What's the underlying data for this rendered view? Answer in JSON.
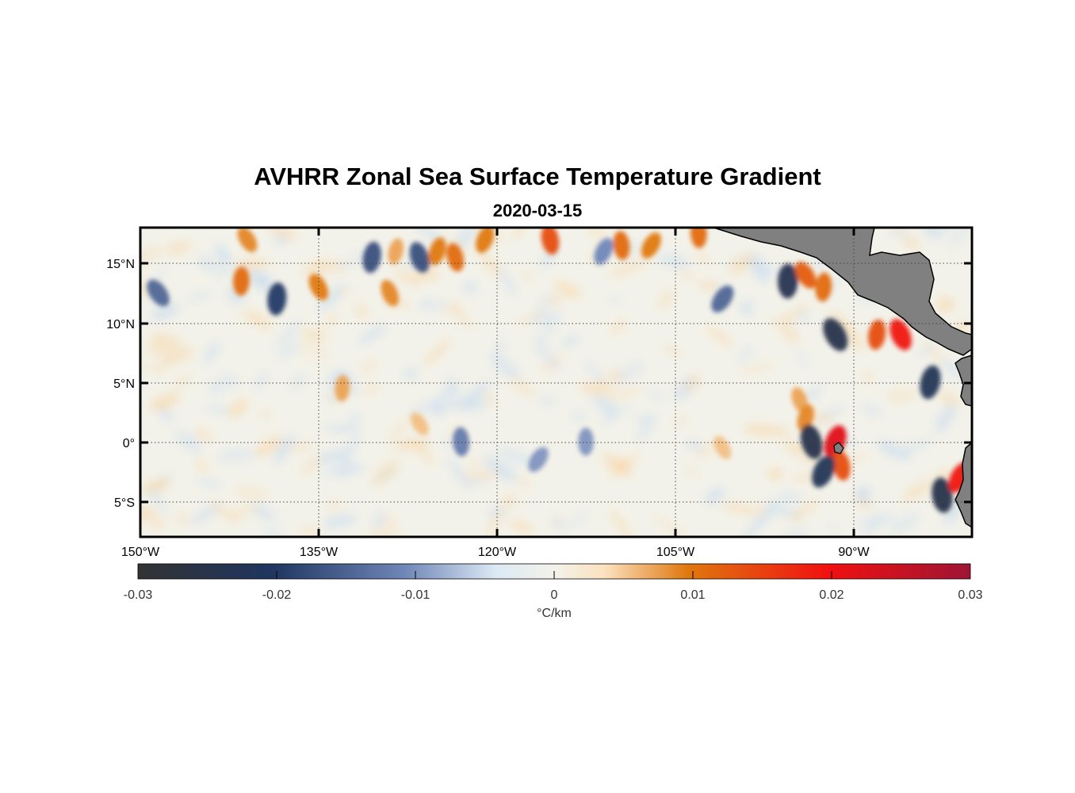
{
  "figure": {
    "title": "AVHRR Zonal Sea Surface Temperature Gradient",
    "subtitle": "2020-03-15"
  },
  "chart_data": {
    "type": "heatmap",
    "title": "AVHRR Zonal Sea Surface Temperature Gradient",
    "subtitle": "2020-03-15",
    "x_axis": {
      "range": [
        -150,
        -80
      ],
      "ticks": [
        -150,
        -135,
        -120,
        -105,
        -90
      ],
      "tick_labels": [
        "150°W",
        "135°W",
        "120°W",
        "105°W",
        "90°W"
      ]
    },
    "y_axis": {
      "range": [
        -8,
        18
      ],
      "ticks": [
        15,
        10,
        5,
        0,
        -5
      ],
      "tick_labels": [
        "15°N",
        "10°N",
        "5°N",
        "0°",
        "5°S"
      ]
    },
    "grid": true,
    "grid_style": "dotted",
    "land_color": "#808080",
    "colorbar": {
      "orientation": "horizontal",
      "placement": "below",
      "range": [
        -0.03,
        0.03
      ],
      "ticks": [
        -0.03,
        -0.02,
        -0.01,
        0,
        0.01,
        0.02,
        0.03
      ],
      "tick_labels": [
        "-0.03",
        "-0.02",
        "-0.01",
        "0",
        "0.01",
        "0.02",
        "0.03"
      ],
      "label": "°C/km",
      "colormap": [
        "#333333",
        "#1f3560",
        "#6f86b8",
        "#dce9f4",
        "#f3f2ea",
        "#fbe2bf",
        "#e0780f",
        "#f01010",
        "#9e1535"
      ]
    },
    "features": [
      {
        "lon": -148.5,
        "lat": 12.5,
        "value": -0.018
      },
      {
        "lon": -141.5,
        "lat": 13.5,
        "value": 0.016
      },
      {
        "lon": -141.0,
        "lat": 17.0,
        "value": 0.014
      },
      {
        "lon": -138.5,
        "lat": 12.0,
        "value": -0.022
      },
      {
        "lon": -135.0,
        "lat": 13.0,
        "value": 0.015
      },
      {
        "lon": -130.5,
        "lat": 15.5,
        "value": -0.02
      },
      {
        "lon": -129.0,
        "lat": 12.5,
        "value": 0.014
      },
      {
        "lon": -128.5,
        "lat": 16.0,
        "value": 0.012
      },
      {
        "lon": -126.5,
        "lat": 15.5,
        "value": -0.02
      },
      {
        "lon": -125.0,
        "lat": 16.0,
        "value": 0.015
      },
      {
        "lon": -123.5,
        "lat": 15.5,
        "value": 0.016
      },
      {
        "lon": -121.0,
        "lat": 17.0,
        "value": 0.015
      },
      {
        "lon": -115.5,
        "lat": 17.0,
        "value": 0.018
      },
      {
        "lon": -111.0,
        "lat": 16.0,
        "value": -0.015
      },
      {
        "lon": -109.5,
        "lat": 16.5,
        "value": 0.016
      },
      {
        "lon": -107.0,
        "lat": 16.5,
        "value": 0.015
      },
      {
        "lon": -103.0,
        "lat": 17.5,
        "value": 0.016
      },
      {
        "lon": -101.0,
        "lat": 12.0,
        "value": -0.018
      },
      {
        "lon": -95.5,
        "lat": 13.5,
        "value": -0.025
      },
      {
        "lon": -94.0,
        "lat": 14.0,
        "value": 0.017
      },
      {
        "lon": -92.5,
        "lat": 13.0,
        "value": 0.016
      },
      {
        "lon": -91.5,
        "lat": 9.0,
        "value": -0.026
      },
      {
        "lon": -88.0,
        "lat": 9.0,
        "value": 0.018
      },
      {
        "lon": -86.0,
        "lat": 9.0,
        "value": 0.022
      },
      {
        "lon": -83.5,
        "lat": 5.0,
        "value": -0.024
      },
      {
        "lon": -94.5,
        "lat": 3.5,
        "value": 0.012
      },
      {
        "lon": -94.0,
        "lat": 2.0,
        "value": 0.014
      },
      {
        "lon": -93.5,
        "lat": 0.0,
        "value": -0.026
      },
      {
        "lon": -91.5,
        "lat": 0.0,
        "value": 0.024
      },
      {
        "lon": -91.0,
        "lat": -2.0,
        "value": 0.018
      },
      {
        "lon": -92.5,
        "lat": -2.5,
        "value": -0.024
      },
      {
        "lon": -82.5,
        "lat": -4.5,
        "value": -0.026
      },
      {
        "lon": -81.0,
        "lat": -3.0,
        "value": 0.022
      },
      {
        "lon": -123.0,
        "lat": 0.0,
        "value": -0.016
      },
      {
        "lon": -116.5,
        "lat": -1.5,
        "value": -0.014
      },
      {
        "lon": -112.5,
        "lat": 0.0,
        "value": -0.014
      },
      {
        "lon": -126.5,
        "lat": 1.5,
        "value": 0.01
      },
      {
        "lon": -133.0,
        "lat": 4.5,
        "value": 0.012
      },
      {
        "lon": -101.0,
        "lat": -0.5,
        "value": 0.01
      }
    ]
  }
}
